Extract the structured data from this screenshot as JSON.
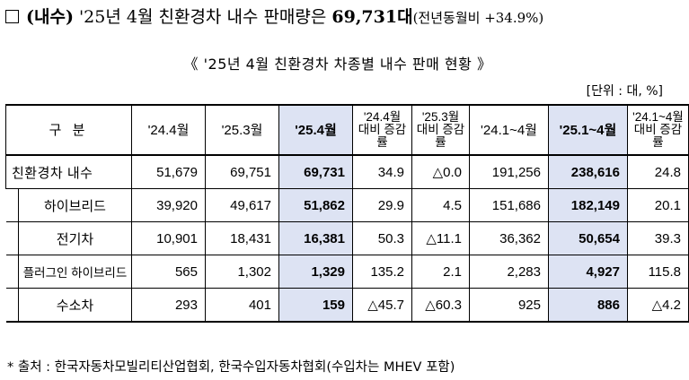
{
  "headline": {
    "box": "□",
    "label": "(내수)",
    "text": "'25년 4월 친환경차 내수 판매량은",
    "value": "69,731대",
    "note": "(전년동월비 +34.9%)"
  },
  "subtitle": "《 '25년 4월 친환경차 차종별 내수 판매 현황 》",
  "unit": "[단위 : 대, %]",
  "table": {
    "headers": [
      "구 분",
      "'24.4월",
      "'25.3월",
      "'25.4월",
      "'24.4월 대비 증감률",
      "'25.3월 대비 증감률",
      "'24.1~4월",
      "'25.1~4월",
      "'24.1~4월 대비 증감률"
    ],
    "rows": [
      {
        "name": "친환경차 내수",
        "values": [
          "51,679",
          "69,751",
          "69,731",
          "34.9",
          "△0.0",
          "191,256",
          "238,616",
          "24.8"
        ]
      },
      {
        "name": "하이브리드",
        "values": [
          "39,920",
          "49,617",
          "51,862",
          "29.9",
          "4.5",
          "151,686",
          "182,149",
          "20.1"
        ]
      },
      {
        "name": "전기차",
        "values": [
          "10,901",
          "18,431",
          "16,381",
          "50.3",
          "△11.1",
          "36,362",
          "50,654",
          "39.3"
        ]
      },
      {
        "name": "플러그인 하이브리드",
        "values": [
          "565",
          "1,302",
          "1,329",
          "135.2",
          "2.1",
          "2,283",
          "4,927",
          "115.8"
        ]
      },
      {
        "name": "수소차",
        "values": [
          "293",
          "401",
          "159",
          "△45.7",
          "△60.3",
          "925",
          "886",
          "△4.2"
        ]
      }
    ]
  },
  "source": "* 출처 : 한국자동차모빌리티산업협회, 한국수입자동차협회(수입차는 MHEV 포함)",
  "colors": {
    "highlight": "#dde3f3"
  }
}
